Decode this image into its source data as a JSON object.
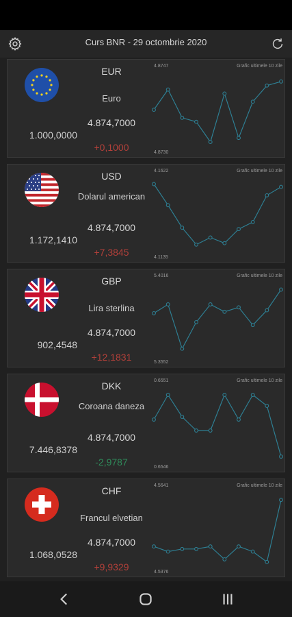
{
  "header": {
    "title": "Curs BNR - 29 octombrie 2020",
    "settings_icon": "gear-icon",
    "refresh_icon": "refresh-icon"
  },
  "chart_label": "Grafic ultimele 10 zile",
  "colors": {
    "background": "#202020",
    "card": "#2a2a2a",
    "line": "#2e7f93",
    "positive": "#b3403a",
    "negative": "#2f8a5a"
  },
  "currencies": [
    {
      "code": "EUR",
      "name": "Euro",
      "amount": "1.000,0000",
      "rate": "4.874,7000",
      "change": "+0,1000",
      "direction": "up",
      "flag": "eu-flag-icon",
      "chart_data": {
        "type": "line",
        "max_label": "4.8747",
        "min_label": "4.8730",
        "ylim": [
          4.873,
          4.8747
        ],
        "values": [
          4.8739,
          4.8744,
          4.8737,
          4.8736,
          4.8731,
          4.8743,
          4.8732,
          4.8741,
          4.8745,
          4.8746
        ]
      }
    },
    {
      "code": "USD",
      "name": "Dolarul american",
      "amount": "1.172,1410",
      "rate": "4.874,7000",
      "change": "+7,3845",
      "direction": "up",
      "flag": "us-flag-icon",
      "chart_data": {
        "type": "line",
        "max_label": "4.1622",
        "min_label": "4.1135",
        "ylim": [
          4.1135,
          4.1622
        ],
        "values": [
          4.161,
          4.146,
          4.13,
          4.118,
          4.123,
          4.119,
          4.129,
          4.134,
          4.153,
          4.159
        ]
      }
    },
    {
      "code": "GBP",
      "name": "Lira sterlina",
      "amount": "902,4548",
      "rate": "4.874,7000",
      "change": "+12,1831",
      "direction": "up",
      "flag": "uk-flag-icon",
      "chart_data": {
        "type": "line",
        "max_label": "5.4016",
        "min_label": "5.3552",
        "ylim": [
          5.3552,
          5.4016
        ],
        "values": [
          5.384,
          5.39,
          5.36,
          5.378,
          5.39,
          5.385,
          5.388,
          5.376,
          5.386,
          5.4
        ]
      }
    },
    {
      "code": "DKK",
      "name": "Coroana daneza",
      "amount": "7.446,8378",
      "rate": "4.874,7000",
      "change": "-2,9787",
      "direction": "down",
      "flag": "dk-flag-icon",
      "chart_data": {
        "type": "line",
        "max_label": "0.6551",
        "min_label": "0.6546",
        "ylim": [
          0.6546,
          0.6551
        ],
        "values": [
          0.6549,
          0.65508,
          0.65492,
          0.65482,
          0.65482,
          0.65508,
          0.6549,
          0.65508,
          0.655,
          0.65463
        ]
      }
    },
    {
      "code": "CHF",
      "name": "Francul elvetian",
      "amount": "1.068,0528",
      "rate": "4.874,7000",
      "change": "+9,9329",
      "direction": "up",
      "flag": "ch-flag-icon",
      "chart_data": {
        "type": "line",
        "max_label": "4.5641",
        "min_label": "4.5376",
        "ylim": [
          4.5376,
          4.5641
        ],
        "values": [
          4.545,
          4.543,
          4.544,
          4.544,
          4.545,
          4.54,
          4.545,
          4.543,
          4.539,
          4.563
        ]
      }
    }
  ],
  "navbar": {
    "back_icon": "back-icon",
    "home_icon": "home-icon",
    "recents_icon": "recents-icon"
  }
}
